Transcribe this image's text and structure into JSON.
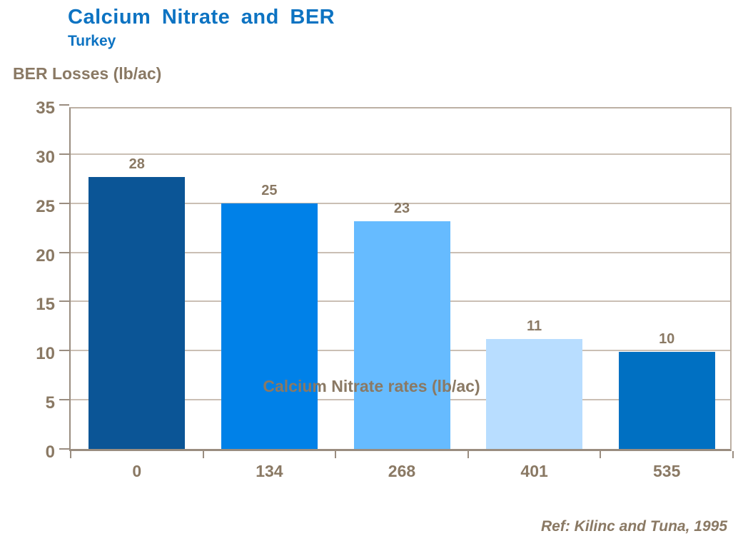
{
  "header": {
    "title": "Calcium Nitrate and BER",
    "subtitle": "Turkey"
  },
  "chart_data": {
    "type": "bar",
    "title": "Calcium Nitrate and BER",
    "subtitle": "Turkey",
    "categories": [
      "0",
      "134",
      "268",
      "401",
      "535"
    ],
    "values": [
      28,
      25,
      23,
      11,
      10
    ],
    "values_precise": [
      27.7,
      25.0,
      23.2,
      11.2,
      9.9
    ],
    "xlabel": "Calcium Nitrate rates (lb/ac)",
    "ylabel": "BER Losses (lb/ac)",
    "ylim": [
      0,
      35
    ],
    "yticks": [
      0,
      5,
      10,
      15,
      20,
      25,
      30,
      35
    ],
    "grid": true,
    "legend_position": "none",
    "bar_colors": [
      "#0b5596",
      "#0081e8",
      "#66bbff",
      "#b8ddff",
      "#0070c2"
    ]
  },
  "footer": {
    "reference": "Ref: Kilinc and Tuna, 1995"
  },
  "colors": {
    "title_blue": "#0d73c2",
    "text_brown": "#8a7964",
    "gridline": "#cabfb4",
    "axis_line": "#9a8d80",
    "plot_border": "#bcb0a4"
  }
}
